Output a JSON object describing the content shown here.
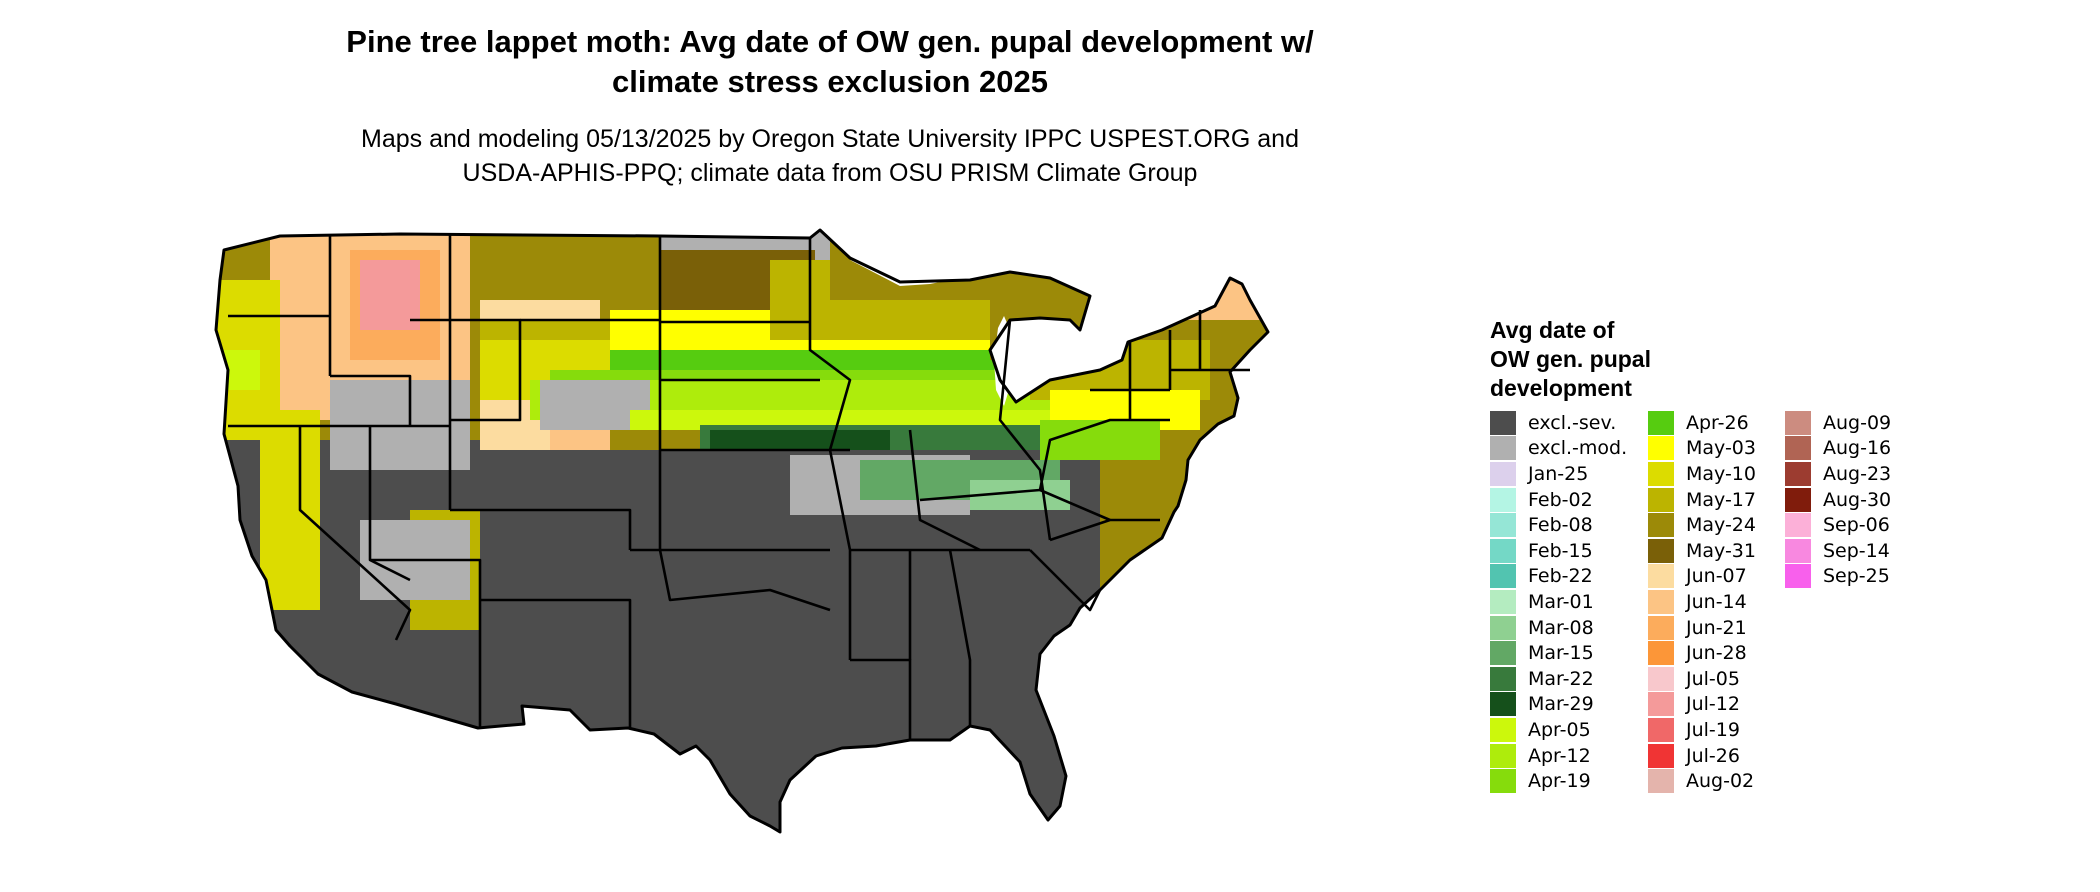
{
  "title": "Pine tree lappet moth: Avg date of OW gen. pupal development w/\nclimate stress exclusion 2025",
  "subtitle": "Maps and modeling 05/13/2025 by Oregon State University IPPC USPEST.ORG and\nUSDA-APHIS-PPQ; climate data from OSU PRISM Climate Group",
  "legend": {
    "title": "Avg date of\nOW gen. pupal\ndevelopment",
    "items": [
      {
        "label": "excl.-sev.",
        "color": "#4d4d4d"
      },
      {
        "label": "excl.-mod.",
        "color": "#b0b0b0"
      },
      {
        "label": "Jan-25",
        "color": "#dcd0ec"
      },
      {
        "label": "Feb-02",
        "color": "#b4f5e4"
      },
      {
        "label": "Feb-08",
        "color": "#95e6d6"
      },
      {
        "label": "Feb-15",
        "color": "#74d8c6"
      },
      {
        "label": "Feb-22",
        "color": "#52c4b0"
      },
      {
        "label": "Mar-01",
        "color": "#b4ecc0"
      },
      {
        "label": "Mar-08",
        "color": "#8fd091"
      },
      {
        "label": "Mar-15",
        "color": "#62a865"
      },
      {
        "label": "Mar-22",
        "color": "#387a3c"
      },
      {
        "label": "Mar-29",
        "color": "#15501b"
      },
      {
        "label": "Apr-05",
        "color": "#ccf80c"
      },
      {
        "label": "Apr-12",
        "color": "#aeec0c"
      },
      {
        "label": "Apr-19",
        "color": "#86dc0c"
      },
      {
        "label": "Apr-26",
        "color": "#56cc10"
      },
      {
        "label": "May-03",
        "color": "#ffff00"
      },
      {
        "label": "May-10",
        "color": "#dcdc00"
      },
      {
        "label": "May-17",
        "color": "#bcb400"
      },
      {
        "label": "May-24",
        "color": "#9c8a08"
      },
      {
        "label": "May-31",
        "color": "#7a6008"
      },
      {
        "label": "Jun-07",
        "color": "#fcdca0"
      },
      {
        "label": "Jun-14",
        "color": "#fcc484"
      },
      {
        "label": "Jun-21",
        "color": "#fcac5c"
      },
      {
        "label": "Jun-28",
        "color": "#fc9638"
      },
      {
        "label": "Jul-05",
        "color": "#f8c8cc"
      },
      {
        "label": "Jul-12",
        "color": "#f49a9a"
      },
      {
        "label": "Jul-19",
        "color": "#f06868"
      },
      {
        "label": "Jul-26",
        "color": "#f03434"
      },
      {
        "label": "Aug-02",
        "color": "#e4b4ac"
      },
      {
        "label": "Aug-09",
        "color": "#cc8c80"
      },
      {
        "label": "Aug-16",
        "color": "#b06454"
      },
      {
        "label": "Aug-23",
        "color": "#9c3c30"
      },
      {
        "label": "Aug-30",
        "color": "#801c0c"
      },
      {
        "label": "Sep-06",
        "color": "#fcb0d8"
      },
      {
        "label": "Sep-14",
        "color": "#f888e0"
      },
      {
        "label": "Sep-25",
        "color": "#f860ec"
      }
    ]
  }
}
